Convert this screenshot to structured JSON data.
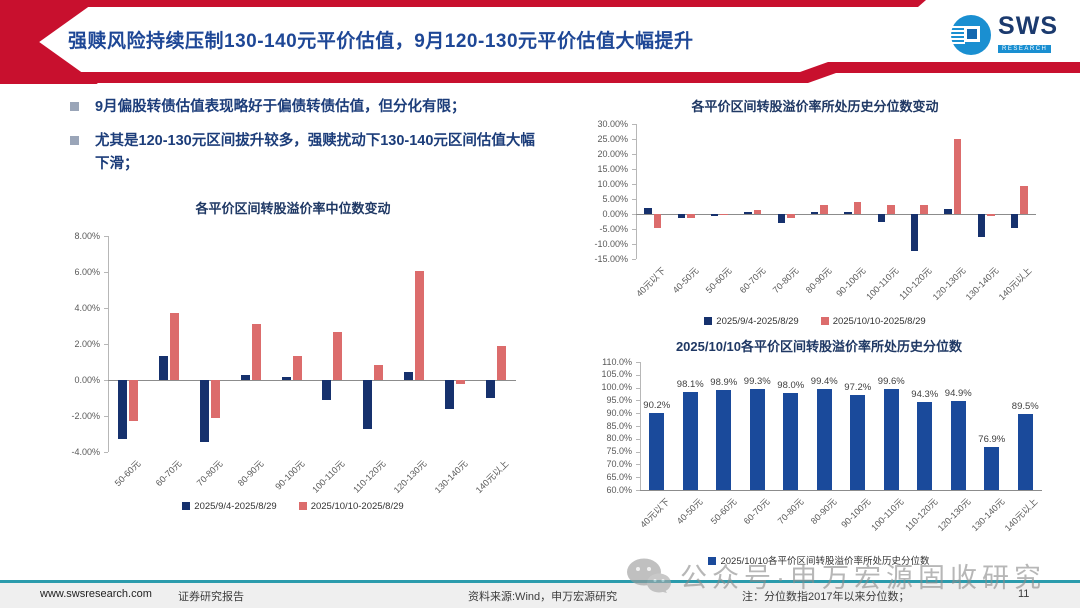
{
  "header": {
    "title": "强赎风险持续压制130-140元平价估值，9月120-130元平价估值大幅提升"
  },
  "logo": {
    "name": "SWS",
    "sub": "RESEARCH"
  },
  "bullets": [
    "9月偏股转债估值表现略好于偏债转债估值，但分化有限；",
    "尤其是120-130元区间拔升较多，强赎扰动下130-140元区间估值大幅下滑；"
  ],
  "colors": {
    "accent_red": "#c8102e",
    "series_navy": "#16316d",
    "series_salmon": "#dc6c6c",
    "percentile_blue": "#1a4a9b",
    "title_navy": "#1f3864",
    "teal_rule": "#2b9bac"
  },
  "chart_data": [
    {
      "type": "bar",
      "title": "各平价区间转股溢价率中位数变动",
      "categories": [
        "50-60元",
        "60-70元",
        "70-80元",
        "80-90元",
        "90-100元",
        "100-110元",
        "110-120元",
        "120-130元",
        "130-140元",
        "140元以上"
      ],
      "series": [
        {
          "name": "2025/9/4-2025/8/29",
          "color": "#16316d",
          "values": [
            -3.3,
            1.35,
            -3.45,
            0.3,
            0.15,
            -1.1,
            -2.7,
            0.45,
            -1.6,
            -1.0
          ]
        },
        {
          "name": "2025/10/10-2025/8/29",
          "color": "#dc6c6c",
          "values": [
            -2.3,
            3.75,
            -2.1,
            3.1,
            1.35,
            2.65,
            0.85,
            6.05,
            -0.2,
            1.9
          ]
        }
      ],
      "ylim": [
        -4,
        8
      ],
      "ytick_step": 2,
      "ytick_decimals": 2,
      "grid": false,
      "legend_position": "bottom",
      "data_labels": false
    },
    {
      "type": "bar",
      "title": "各平价区间转股溢价率所处历史分位数变动",
      "categories": [
        "40元以下",
        "40-50元",
        "50-60元",
        "60-70元",
        "70-80元",
        "80-90元",
        "90-100元",
        "100-110元",
        "110-120元",
        "120-130元",
        "130-140元",
        "140元以上"
      ],
      "series": [
        {
          "name": "2025/9/4-2025/8/29",
          "color": "#16316d",
          "values": [
            2.0,
            -1.2,
            -0.7,
            0.7,
            -3.0,
            0.8,
            0.8,
            -2.5,
            -12.3,
            1.8,
            -7.8,
            -4.8
          ]
        },
        {
          "name": "2025/10/10-2025/8/29",
          "color": "#dc6c6c",
          "values": [
            -4.8,
            -1.2,
            -0.3,
            1.5,
            -1.3,
            3.0,
            4.0,
            2.9,
            3.0,
            25.0,
            -0.8,
            9.4
          ]
        }
      ],
      "ylim": [
        -15,
        30
      ],
      "ytick_step": 5,
      "ytick_decimals": 2,
      "grid": false,
      "legend_position": "bottom",
      "data_labels": false
    },
    {
      "type": "bar",
      "title": "2025/10/10各平价区间转股溢价率所处历史分位数",
      "categories": [
        "40元以下",
        "40-50元",
        "50-60元",
        "60-70元",
        "70-80元",
        "80-90元",
        "90-100元",
        "100-110元",
        "110-120元",
        "120-130元",
        "130-140元",
        "140元以上"
      ],
      "series": [
        {
          "name": "2025/10/10各平价区间转股溢价率所处历史分位数",
          "color": "#1a4a9b",
          "values": [
            90.2,
            98.1,
            98.9,
            99.3,
            98.0,
            99.4,
            97.2,
            99.6,
            94.3,
            94.9,
            76.9,
            89.5
          ]
        }
      ],
      "ylim": [
        60,
        110
      ],
      "ytick_step": 5,
      "ytick_decimals": 1,
      "grid": false,
      "legend_position": "bottom",
      "data_labels": true
    }
  ],
  "watermark": {
    "text": "公众号·申万宏源固收研究"
  },
  "footer": {
    "website": "www.swsresearch.com",
    "report_label": "证券研究报告",
    "source": "资料来源:Wind，申万宏源研究",
    "note": "注：分位数指2017年以来分位数；",
    "page_number": "11"
  }
}
